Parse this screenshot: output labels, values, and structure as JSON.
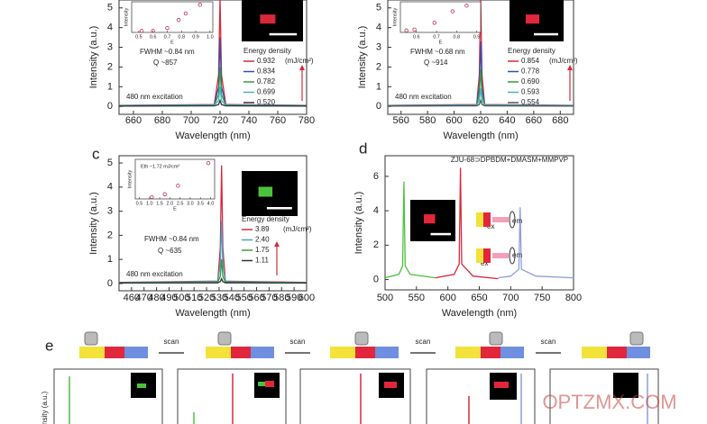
{
  "chart_data": [
    {
      "type": "line",
      "xlabel": "Wavelength (nm)",
      "ylabel": "Intensity (a.u.)",
      "xlim": [
        650,
        780
      ],
      "xticks": [
        660,
        680,
        700,
        720,
        740,
        760,
        780
      ],
      "ylim": [
        -0.4,
        5.4
      ],
      "yticks": [
        0,
        1,
        2,
        3,
        4,
        5
      ],
      "x": [
        650,
        716,
        719,
        720,
        721,
        724,
        780
      ],
      "series": [
        {
          "name": "0.932",
          "color": "#d42a3c",
          "values": [
            0.05,
            0.1,
            1.6,
            5.5,
            1.6,
            0.1,
            0.05
          ]
        },
        {
          "name": "0.834",
          "color": "#3050b0",
          "values": [
            0.05,
            0.08,
            1.0,
            3.5,
            1.0,
            0.08,
            0.05
          ]
        },
        {
          "name": "0.782",
          "color": "#3a9a3a",
          "values": [
            0.04,
            0.06,
            0.6,
            2.0,
            0.6,
            0.06,
            0.04
          ]
        },
        {
          "name": "0.699",
          "color": "#46b4c8",
          "values": [
            0.03,
            0.05,
            0.3,
            1.0,
            0.3,
            0.05,
            0.03
          ]
        },
        {
          "name": "0.520",
          "color": "#333333",
          "values": [
            0.02,
            0.03,
            0.1,
            0.3,
            0.1,
            0.03,
            0.02
          ]
        }
      ],
      "legend_title": "Energy density",
      "legend_unit": "(mJ/cm²)",
      "annotations": [
        "FWHM ~0.84 nm",
        "Q ~857",
        "480 nm excitation"
      ],
      "inset": {
        "xlabel": "E",
        "ylabel": "Intensity",
        "xlim": [
          0.45,
          1.02
        ],
        "xticks": [
          0.5,
          0.6,
          0.7,
          0.8,
          0.9,
          {
            "value": 1,
            "label": "1.0"
          }
        ],
        "ylim": [
          0,
          4.2
        ],
        "x": [
          0.52,
          0.6,
          0.7,
          0.78,
          0.83,
          0.93
        ],
        "values": [
          0.2,
          0.2,
          0.6,
          1.7,
          2.6,
          3.8
        ]
      }
    },
    {
      "type": "line",
      "xlabel": "Wavelength (nm)",
      "ylabel": "Intensity (a.u.)",
      "xlim": [
        550,
        690
      ],
      "xticks": [
        560,
        580,
        600,
        620,
        640,
        660,
        680
      ],
      "ylim": [
        -0.4,
        5.4
      ],
      "yticks": [
        0,
        1,
        2,
        3,
        4,
        5
      ],
      "x": [
        550,
        617,
        619,
        620,
        621,
        623,
        690
      ],
      "series": [
        {
          "name": "0.854",
          "color": "#d42a3c",
          "values": [
            0.05,
            0.1,
            1.6,
            5.5,
            1.6,
            0.1,
            0.05
          ]
        },
        {
          "name": "0.778",
          "color": "#3050b0",
          "values": [
            0.05,
            0.08,
            1.0,
            3.3,
            1.0,
            0.08,
            0.05
          ]
        },
        {
          "name": "0.690",
          "color": "#3a9a3a",
          "values": [
            0.04,
            0.06,
            0.6,
            1.9,
            0.6,
            0.06,
            0.04
          ]
        },
        {
          "name": "0.593",
          "color": "#46b4c8",
          "values": [
            0.03,
            0.05,
            0.3,
            0.9,
            0.3,
            0.05,
            0.03
          ]
        },
        {
          "name": "0.554",
          "color": "#555555",
          "values": [
            0.02,
            0.03,
            0.1,
            0.3,
            0.1,
            0.03,
            0.02
          ]
        }
      ],
      "legend_title": "Energy density",
      "legend_unit": "(mJ/cm²)",
      "annotations": [
        "FWHM ~0.68 nm",
        "Q ~914",
        "480 nm excitation"
      ],
      "inset": {
        "xlabel": "E",
        "ylabel": "Intensity",
        "xlim": [
          0.52,
          0.92
        ],
        "xticks": [
          0.6,
          0.7,
          0.8,
          0.9
        ],
        "ylim": [
          0,
          3.2
        ],
        "x": [
          0.55,
          0.59,
          0.69,
          0.78,
          0.85
        ],
        "values": [
          0.2,
          0.3,
          1.0,
          2.2,
          2.8
        ]
      }
    },
    {
      "type": "line",
      "label": "c",
      "xlabel": "Wavelength (nm)",
      "ylabel": "Intensity (a.u.)",
      "xlim": [
        450,
        600
      ],
      "xticks": [
        460,
        470,
        480,
        490,
        500,
        510,
        520,
        530,
        540,
        550,
        560,
        570,
        580,
        590,
        600
      ],
      "ylim": [
        -0.3,
        5.3
      ],
      "yticks": [
        0,
        1,
        2,
        3,
        4,
        5
      ],
      "x": [
        450,
        529,
        531,
        532,
        533,
        535,
        600
      ],
      "series": [
        {
          "name": "3.89",
          "color": "#d42a3c",
          "values": [
            0.05,
            0.1,
            1.5,
            4.9,
            1.5,
            0.1,
            0.05
          ]
        },
        {
          "name": "2.40",
          "color": "#46a0c8",
          "values": [
            0.04,
            0.08,
            0.8,
            2.6,
            0.8,
            0.08,
            0.04
          ]
        },
        {
          "name": "1.75",
          "color": "#3a9a3a",
          "values": [
            0.03,
            0.05,
            0.3,
            1.0,
            0.3,
            0.05,
            0.03
          ]
        },
        {
          "name": "1.11",
          "color": "#333333",
          "values": [
            0.02,
            0.03,
            0.08,
            0.2,
            0.08,
            0.03,
            0.02
          ]
        }
      ],
      "legend_title": "Energy density",
      "legend_unit": "(mJ/cm²)",
      "annotations": [
        "FWHM ~0.84 nm",
        "Q ~635",
        "480 nm excitation"
      ],
      "inset": {
        "xlabel": "E",
        "ylabel": "Intensity",
        "note": "Eth ~1.72 mJ/cm²",
        "xlim": [
          0.3,
          4.2
        ],
        "xticks": [
          0.5,
          {
            "value": 1,
            "label": "1.0"
          },
          1.5,
          {
            "value": 2,
            "label": "2.0"
          },
          2.5,
          {
            "value": 3,
            "label": "3.0"
          },
          3.5,
          {
            "value": 4,
            "label": "4.0"
          }
        ],
        "ylim": [
          0,
          4.2
        ],
        "x": [
          1.11,
          1.75,
          2.4,
          3.89
        ],
        "values": [
          0.2,
          0.5,
          1.4,
          3.8
        ]
      }
    },
    {
      "type": "line",
      "label": "d",
      "title": "ZJU-68⊃DPBDM+DMASM+MMPVP",
      "xlabel": "Wavelength (nm)",
      "ylabel": "Intensity (a.u.)",
      "xlim": [
        500,
        800
      ],
      "xticks": [
        500,
        550,
        600,
        650,
        700,
        750,
        800
      ],
      "ylim": [
        -0.6,
        7.2
      ],
      "yticks": [
        0,
        2,
        4,
        6
      ],
      "x": [
        500,
        522,
        528,
        530,
        532,
        540,
        580,
        610,
        618,
        620,
        622,
        640,
        680,
        700,
        713,
        715,
        717,
        740,
        800
      ],
      "series": [
        {
          "name": null,
          "color": "#4cc23c",
          "values": [
            0.1,
            0.3,
            0.8,
            5.7,
            0.8,
            0.3,
            0.1,
            null,
            null,
            null,
            null,
            null,
            null,
            null,
            null,
            null,
            null,
            null,
            null
          ]
        },
        {
          "name": null,
          "color": "#d8283c",
          "values": [
            null,
            null,
            null,
            null,
            null,
            null,
            0.1,
            0.3,
            0.9,
            6.5,
            0.9,
            0.2,
            0.05,
            null,
            null,
            null,
            null,
            null,
            null
          ]
        },
        {
          "name": null,
          "color": "#8c9ed8",
          "values": [
            null,
            null,
            null,
            null,
            null,
            null,
            null,
            null,
            null,
            null,
            null,
            null,
            0.1,
            0.2,
            0.6,
            4.2,
            0.6,
            0.2,
            0.1
          ]
        }
      ],
      "annotations": [
        "ex",
        "em",
        "ex",
        "em"
      ]
    }
  ],
  "panel_e": {
    "label": "e",
    "steps": [
      "scan",
      "scan",
      "scan",
      "scan"
    ],
    "ylabel": "Intensity (a.u.)"
  },
  "watermark": "OPTZMX.COM"
}
